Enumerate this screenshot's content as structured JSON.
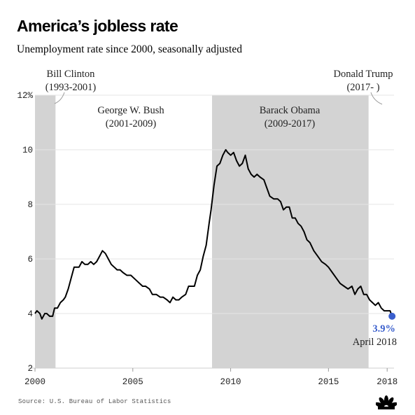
{
  "title": "America’s jobless rate",
  "subtitle": "Unemployment rate since 2000, seasonally adjusted",
  "source": "Source: U.S. Bureau of Labor Statistics",
  "logo_icon": "nbc-peacock-icon",
  "colors": {
    "line": "#000000",
    "shade": "#d3d3d3",
    "marker": "#3a5fcd",
    "annotation": "#3a5fcd"
  },
  "chart_data": {
    "type": "line",
    "title": "America’s jobless rate",
    "subtitle": "Unemployment rate since 2000, seasonally adjusted",
    "ylim": [
      2,
      12
    ],
    "yticks": [
      2,
      4,
      6,
      8,
      10,
      12
    ],
    "ytick_labels": [
      "2",
      "4",
      "6",
      "8",
      "10",
      "12%"
    ],
    "xlim": [
      2000,
      2018.35
    ],
    "xticks": [
      2000,
      2005,
      2010,
      2015,
      2018
    ],
    "xtick_labels": [
      "2000",
      "2005",
      "2010",
      "2015",
      "2018"
    ],
    "grid": "horizontal",
    "periods": [
      {
        "name": "Bill Clinton",
        "range": "(1993-2001)",
        "start": 2000.0,
        "end": 2001.05,
        "shaded": true
      },
      {
        "name": "George W. Bush",
        "range": "(2001-2009)",
        "start": 2001.05,
        "end": 2009.05,
        "shaded": false
      },
      {
        "name": "Barack Obama",
        "range": "(2009-2017)",
        "start": 2009.05,
        "end": 2017.05,
        "shaded": true
      },
      {
        "name": "Donald Trump",
        "range": "(2017- )",
        "start": 2017.05,
        "end": 2018.3,
        "shaded": false
      }
    ],
    "series": [
      {
        "points": [
          [
            2000.0,
            4.0
          ],
          [
            2000.1,
            4.1
          ],
          [
            2000.25,
            4.0
          ],
          [
            2000.35,
            3.8
          ],
          [
            2000.5,
            4.0
          ],
          [
            2000.6,
            4.0
          ],
          [
            2000.75,
            3.9
          ],
          [
            2000.9,
            3.9
          ],
          [
            2001.0,
            4.2
          ],
          [
            2001.15,
            4.2
          ],
          [
            2001.3,
            4.4
          ],
          [
            2001.45,
            4.5
          ],
          [
            2001.55,
            4.6
          ],
          [
            2001.7,
            4.9
          ],
          [
            2001.85,
            5.3
          ],
          [
            2002.0,
            5.7
          ],
          [
            2002.25,
            5.7
          ],
          [
            2002.4,
            5.9
          ],
          [
            2002.55,
            5.8
          ],
          [
            2002.7,
            5.8
          ],
          [
            2002.85,
            5.9
          ],
          [
            2003.0,
            5.8
          ],
          [
            2003.15,
            5.9
          ],
          [
            2003.3,
            6.1
          ],
          [
            2003.45,
            6.3
          ],
          [
            2003.6,
            6.2
          ],
          [
            2003.75,
            6.0
          ],
          [
            2003.9,
            5.8
          ],
          [
            2004.05,
            5.7
          ],
          [
            2004.2,
            5.6
          ],
          [
            2004.35,
            5.6
          ],
          [
            2004.5,
            5.5
          ],
          [
            2004.7,
            5.4
          ],
          [
            2004.9,
            5.4
          ],
          [
            2005.05,
            5.3
          ],
          [
            2005.2,
            5.2
          ],
          [
            2005.35,
            5.1
          ],
          [
            2005.5,
            5.0
          ],
          [
            2005.65,
            5.0
          ],
          [
            2005.85,
            4.9
          ],
          [
            2006.0,
            4.7
          ],
          [
            2006.2,
            4.7
          ],
          [
            2006.4,
            4.6
          ],
          [
            2006.55,
            4.6
          ],
          [
            2006.75,
            4.5
          ],
          [
            2006.9,
            4.4
          ],
          [
            2007.05,
            4.6
          ],
          [
            2007.2,
            4.5
          ],
          [
            2007.35,
            4.5
          ],
          [
            2007.5,
            4.6
          ],
          [
            2007.7,
            4.7
          ],
          [
            2007.85,
            5.0
          ],
          [
            2008.0,
            5.0
          ],
          [
            2008.15,
            5.0
          ],
          [
            2008.3,
            5.4
          ],
          [
            2008.45,
            5.6
          ],
          [
            2008.6,
            6.1
          ],
          [
            2008.75,
            6.5
          ],
          [
            2008.9,
            7.3
          ],
          [
            2009.0,
            7.8
          ],
          [
            2009.15,
            8.7
          ],
          [
            2009.3,
            9.4
          ],
          [
            2009.45,
            9.5
          ],
          [
            2009.6,
            9.8
          ],
          [
            2009.75,
            10.0
          ],
          [
            2009.85,
            9.9
          ],
          [
            2010.0,
            9.8
          ],
          [
            2010.15,
            9.9
          ],
          [
            2010.3,
            9.6
          ],
          [
            2010.45,
            9.4
          ],
          [
            2010.6,
            9.5
          ],
          [
            2010.75,
            9.8
          ],
          [
            2010.9,
            9.3
          ],
          [
            2011.05,
            9.1
          ],
          [
            2011.2,
            9.0
          ],
          [
            2011.35,
            9.1
          ],
          [
            2011.5,
            9.0
          ],
          [
            2011.7,
            8.9
          ],
          [
            2011.85,
            8.6
          ],
          [
            2012.0,
            8.3
          ],
          [
            2012.2,
            8.2
          ],
          [
            2012.4,
            8.2
          ],
          [
            2012.55,
            8.1
          ],
          [
            2012.7,
            7.8
          ],
          [
            2012.85,
            7.9
          ],
          [
            2013.0,
            7.9
          ],
          [
            2013.15,
            7.5
          ],
          [
            2013.3,
            7.5
          ],
          [
            2013.45,
            7.3
          ],
          [
            2013.6,
            7.2
          ],
          [
            2013.75,
            7.0
          ],
          [
            2013.9,
            6.7
          ],
          [
            2014.05,
            6.6
          ],
          [
            2014.25,
            6.3
          ],
          [
            2014.45,
            6.1
          ],
          [
            2014.65,
            5.9
          ],
          [
            2014.85,
            5.8
          ],
          [
            2015.0,
            5.7
          ],
          [
            2015.2,
            5.5
          ],
          [
            2015.4,
            5.3
          ],
          [
            2015.6,
            5.1
          ],
          [
            2015.8,
            5.0
          ],
          [
            2016.0,
            4.9
          ],
          [
            2016.2,
            5.0
          ],
          [
            2016.35,
            4.7
          ],
          [
            2016.5,
            4.9
          ],
          [
            2016.65,
            5.0
          ],
          [
            2016.8,
            4.7
          ],
          [
            2016.95,
            4.7
          ],
          [
            2017.1,
            4.5
          ],
          [
            2017.25,
            4.4
          ],
          [
            2017.4,
            4.3
          ],
          [
            2017.55,
            4.4
          ],
          [
            2017.7,
            4.2
          ],
          [
            2017.85,
            4.1
          ],
          [
            2018.0,
            4.1
          ],
          [
            2018.15,
            4.1
          ],
          [
            2018.25,
            3.9
          ]
        ]
      }
    ],
    "annotation": {
      "value_label": "3.9%",
      "date_label": "April 2018",
      "x": 2018.25,
      "y": 3.9
    }
  }
}
